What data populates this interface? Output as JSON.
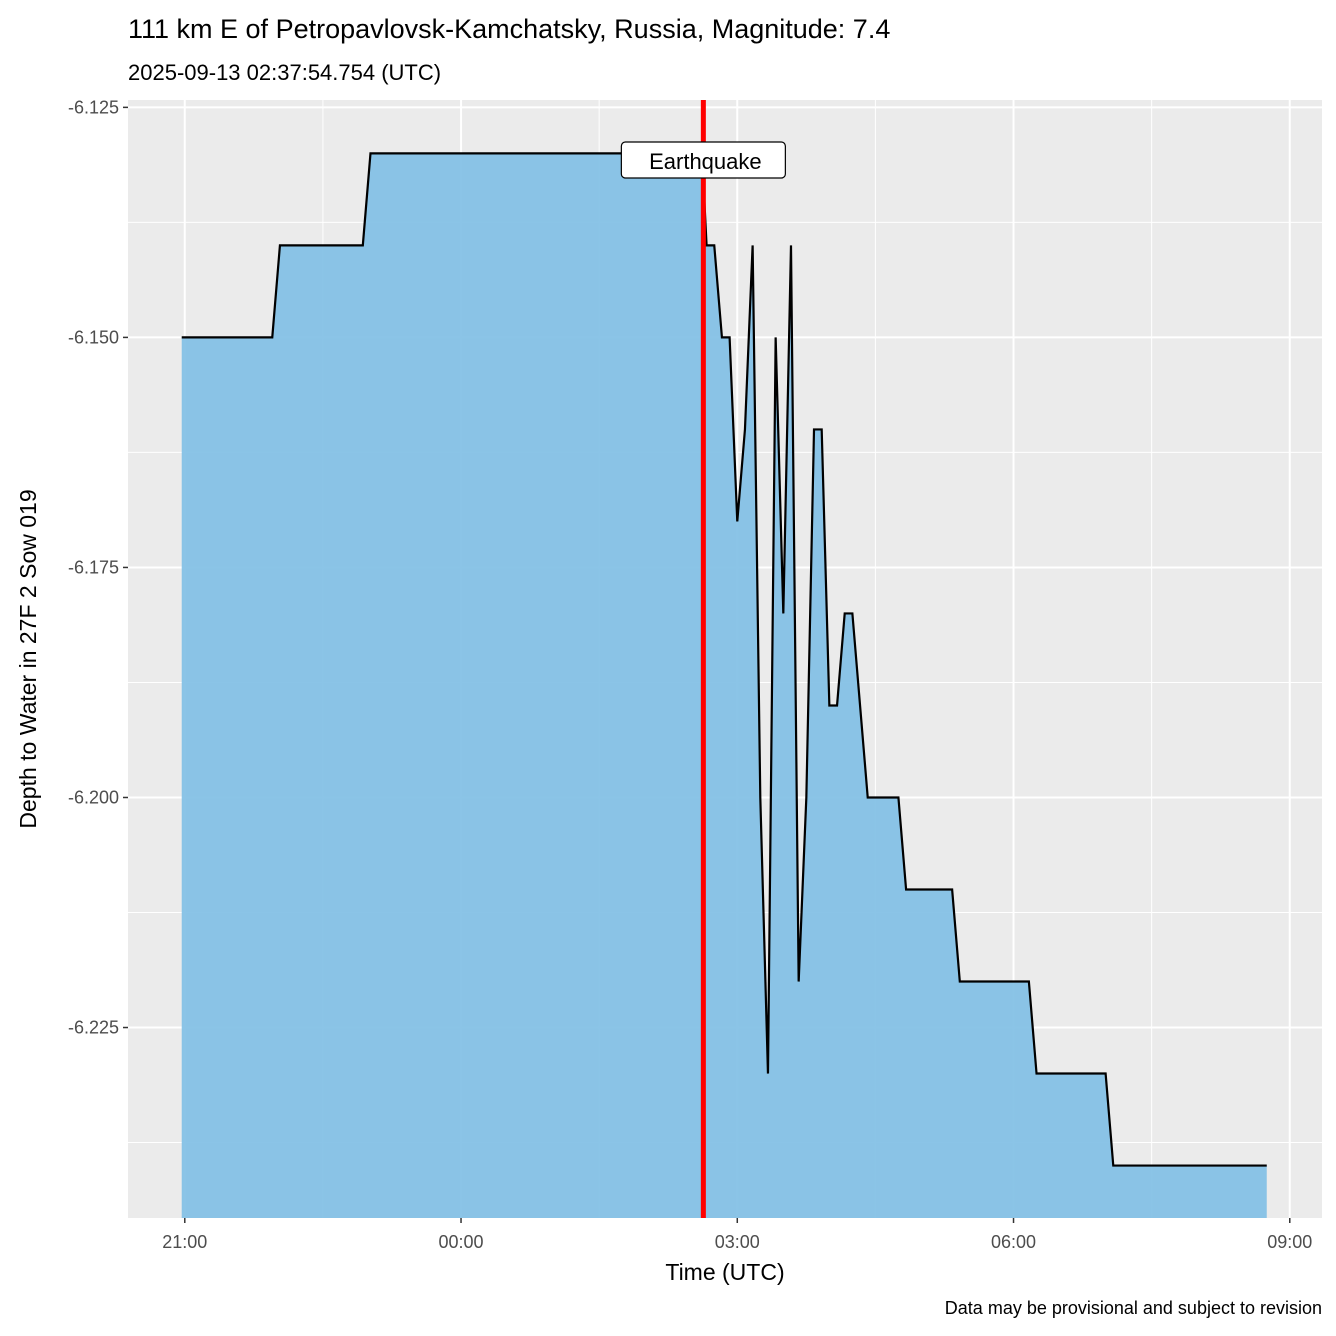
{
  "chart_data": {
    "type": "area",
    "title": "111 km E of Petropavlovsk-Kamchatsky, Russia, Magnitude: 7.4",
    "subtitle": "2025-09-13 02:37:54.754 (UTC)",
    "caption": "Data may be provisional and subject to revision",
    "xlabel": "Time (UTC)",
    "ylabel": "Depth to Water in 27F 2 Sow 019",
    "x_ticks": [
      {
        "t": "2025-09-12T21:00",
        "label": "21:00"
      },
      {
        "t": "2025-09-13T00:00",
        "label": "00:00"
      },
      {
        "t": "2025-09-13T03:00",
        "label": "03:00"
      },
      {
        "t": "2025-09-13T06:00",
        "label": "06:00"
      },
      {
        "t": "2025-09-13T09:00",
        "label": "09:00"
      }
    ],
    "y_ticks": [
      -6.125,
      -6.15,
      -6.175,
      -6.2,
      -6.225
    ],
    "y_tick_labels": [
      "-6.125",
      "-6.150",
      "-6.175",
      "-6.200",
      "-6.225"
    ],
    "xlim": [
      "2025-09-12T20:23",
      "2025-09-13T09:21"
    ],
    "ylim": [
      -6.2457,
      -6.1242
    ],
    "grid": true,
    "fill_color": "#85C1E6",
    "line_color": "#000000",
    "event": {
      "t": "2025-09-13T02:37:54",
      "label": "Earthquake",
      "color": "#FF0000"
    },
    "points": [
      [
        "2025-09-12T20:58",
        -6.15
      ],
      [
        "2025-09-12T21:57",
        -6.15
      ],
      [
        "2025-09-12T22:02",
        -6.14
      ],
      [
        "2025-09-12T22:56",
        -6.14
      ],
      [
        "2025-09-12T23:01",
        -6.13
      ],
      [
        "2025-09-13T02:37",
        -6.13
      ],
      [
        "2025-09-13T02:40",
        -6.14
      ],
      [
        "2025-09-13T02:45",
        -6.14
      ],
      [
        "2025-09-13T02:50",
        -6.15
      ],
      [
        "2025-09-13T02:55",
        -6.15
      ],
      [
        "2025-09-13T03:00",
        -6.17
      ],
      [
        "2025-09-13T03:05",
        -6.16
      ],
      [
        "2025-09-13T03:10",
        -6.14
      ],
      [
        "2025-09-13T03:15",
        -6.2
      ],
      [
        "2025-09-13T03:20",
        -6.23
      ],
      [
        "2025-09-13T03:25",
        -6.15
      ],
      [
        "2025-09-13T03:30",
        -6.18
      ],
      [
        "2025-09-13T03:35",
        -6.14
      ],
      [
        "2025-09-13T03:40",
        -6.22
      ],
      [
        "2025-09-13T03:45",
        -6.2
      ],
      [
        "2025-09-13T03:50",
        -6.16
      ],
      [
        "2025-09-13T03:55",
        -6.16
      ],
      [
        "2025-09-13T04:00",
        -6.19
      ],
      [
        "2025-09-13T04:05",
        -6.19
      ],
      [
        "2025-09-13T04:10",
        -6.18
      ],
      [
        "2025-09-13T04:15",
        -6.18
      ],
      [
        "2025-09-13T04:25",
        -6.2
      ],
      [
        "2025-09-13T04:45",
        -6.2
      ],
      [
        "2025-09-13T04:50",
        -6.21
      ],
      [
        "2025-09-13T05:20",
        -6.21
      ],
      [
        "2025-09-13T05:25",
        -6.22
      ],
      [
        "2025-09-13T06:10",
        -6.22
      ],
      [
        "2025-09-13T06:15",
        -6.23
      ],
      [
        "2025-09-13T07:00",
        -6.23
      ],
      [
        "2025-09-13T07:05",
        -6.24
      ],
      [
        "2025-09-13T08:45",
        -6.24
      ]
    ]
  }
}
